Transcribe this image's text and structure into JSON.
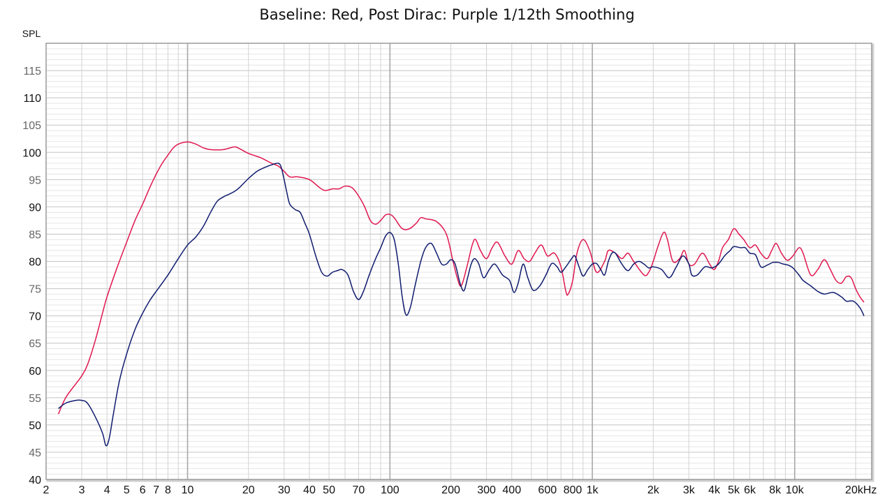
{
  "chart_data": {
    "type": "line",
    "title": "Baseline: Red, Post Dirac: Purple 1/12th Smoothing",
    "ylabel": "SPL",
    "xlabel": "",
    "x_scale": "log",
    "xlim": [
      2,
      24000
    ],
    "ylim": [
      40,
      120
    ],
    "grid": true,
    "y_ticks": [
      {
        "value": 40,
        "label": "40",
        "major": true
      },
      {
        "value": 45,
        "label": "45",
        "major": false
      },
      {
        "value": 50,
        "label": "50",
        "major": true
      },
      {
        "value": 55,
        "label": "55",
        "major": false
      },
      {
        "value": 60,
        "label": "60",
        "major": true
      },
      {
        "value": 65,
        "label": "65",
        "major": false
      },
      {
        "value": 70,
        "label": "70",
        "major": true
      },
      {
        "value": 75,
        "label": "75",
        "major": false
      },
      {
        "value": 80,
        "label": "80",
        "major": true
      },
      {
        "value": 85,
        "label": "85",
        "major": false
      },
      {
        "value": 90,
        "label": "90",
        "major": true
      },
      {
        "value": 95,
        "label": "95",
        "major": false
      },
      {
        "value": 100,
        "label": "100",
        "major": true
      },
      {
        "value": 105,
        "label": "105",
        "major": false
      },
      {
        "value": 110,
        "label": "110",
        "major": true
      },
      {
        "value": 115,
        "label": "115",
        "major": false
      }
    ],
    "x_ticks": [
      {
        "value": 2,
        "label": "2"
      },
      {
        "value": 3,
        "label": "3"
      },
      {
        "value": 4,
        "label": "4"
      },
      {
        "value": 5,
        "label": "5"
      },
      {
        "value": 6,
        "label": "6"
      },
      {
        "value": 7,
        "label": "7"
      },
      {
        "value": 8,
        "label": "8"
      },
      {
        "value": 10,
        "label": "10"
      },
      {
        "value": 20,
        "label": "20"
      },
      {
        "value": 30,
        "label": "30"
      },
      {
        "value": 40,
        "label": "40"
      },
      {
        "value": 50,
        "label": "50"
      },
      {
        "value": 70,
        "label": "70"
      },
      {
        "value": 100,
        "label": "100"
      },
      {
        "value": 200,
        "label": "200"
      },
      {
        "value": 300,
        "label": "300"
      },
      {
        "value": 400,
        "label": "400"
      },
      {
        "value": 600,
        "label": "600"
      },
      {
        "value": 800,
        "label": "800"
      },
      {
        "value": 1000,
        "label": "1k"
      },
      {
        "value": 2000,
        "label": "2k"
      },
      {
        "value": 3000,
        "label": "3k"
      },
      {
        "value": 4000,
        "label": "4k"
      },
      {
        "value": 5000,
        "label": "5k"
      },
      {
        "value": 6000,
        "label": "6k"
      },
      {
        "value": 8000,
        "label": "8k"
      },
      {
        "value": 10000,
        "label": "10k"
      },
      {
        "value": 20000,
        "label": "20kHz"
      }
    ],
    "series": [
      {
        "color": "#e0174f",
        "points": [
          [
            2.3,
            52
          ],
          [
            2.5,
            55
          ],
          [
            2.8,
            57.5
          ],
          [
            3.0,
            59
          ],
          [
            3.2,
            61
          ],
          [
            3.5,
            65.5
          ],
          [
            3.8,
            70.5
          ],
          [
            4.0,
            73.5
          ],
          [
            4.5,
            79
          ],
          [
            5.0,
            83.5
          ],
          [
            5.5,
            87.5
          ],
          [
            6.0,
            90.5
          ],
          [
            6.5,
            93.5
          ],
          [
            7.0,
            96
          ],
          [
            7.5,
            98
          ],
          [
            8.0,
            99.5
          ],
          [
            8.5,
            100.8
          ],
          [
            9.0,
            101.5
          ],
          [
            10.0,
            101.9
          ],
          [
            11,
            101.5
          ],
          [
            12,
            100.8
          ],
          [
            13,
            100.5
          ],
          [
            15,
            100.5
          ],
          [
            17,
            101
          ],
          [
            18,
            100.7
          ],
          [
            20,
            99.8
          ],
          [
            23,
            99
          ],
          [
            26,
            98
          ],
          [
            28,
            97.5
          ],
          [
            30,
            96.5
          ],
          [
            32,
            95.5
          ],
          [
            35,
            95.5
          ],
          [
            40,
            95
          ],
          [
            45,
            93.5
          ],
          [
            48,
            93
          ],
          [
            52,
            93.3
          ],
          [
            56,
            93.3
          ],
          [
            60,
            93.8
          ],
          [
            65,
            93.5
          ],
          [
            70,
            92
          ],
          [
            75,
            90
          ],
          [
            80,
            87.5
          ],
          [
            85,
            86.8
          ],
          [
            90,
            87.5
          ],
          [
            95,
            88.5
          ],
          [
            100,
            88.6
          ],
          [
            105,
            88
          ],
          [
            115,
            86
          ],
          [
            125,
            86
          ],
          [
            135,
            87
          ],
          [
            142,
            88
          ],
          [
            150,
            87.8
          ],
          [
            170,
            87.3
          ],
          [
            190,
            85
          ],
          [
            205,
            80
          ],
          [
            215,
            77
          ],
          [
            225,
            75.5
          ],
          [
            240,
            79
          ],
          [
            255,
            83
          ],
          [
            265,
            84
          ],
          [
            280,
            82
          ],
          [
            300,
            80.5
          ],
          [
            320,
            82.5
          ],
          [
            340,
            83.5
          ],
          [
            370,
            81
          ],
          [
            400,
            79.5
          ],
          [
            430,
            82
          ],
          [
            460,
            80.5
          ],
          [
            490,
            80
          ],
          [
            520,
            81.5
          ],
          [
            560,
            83
          ],
          [
            600,
            81
          ],
          [
            650,
            81.5
          ],
          [
            700,
            79
          ],
          [
            740,
            74.5
          ],
          [
            760,
            74
          ],
          [
            800,
            76.5
          ],
          [
            840,
            81.5
          ],
          [
            900,
            84
          ],
          [
            970,
            82
          ],
          [
            1050,
            78
          ],
          [
            1150,
            80
          ],
          [
            1200,
            82
          ],
          [
            1300,
            81.5
          ],
          [
            1400,
            80.5
          ],
          [
            1500,
            81.5
          ],
          [
            1600,
            80
          ],
          [
            1800,
            77.5
          ],
          [
            1900,
            78
          ],
          [
            2000,
            80
          ],
          [
            2100,
            82.5
          ],
          [
            2250,
            85.3
          ],
          [
            2350,
            84
          ],
          [
            2500,
            80
          ],
          [
            2700,
            80.5
          ],
          [
            2850,
            82
          ],
          [
            3000,
            79.5
          ],
          [
            3200,
            79.5
          ],
          [
            3500,
            81.5
          ],
          [
            3800,
            79.5
          ],
          [
            4000,
            78.5
          ],
          [
            4200,
            80
          ],
          [
            4400,
            82.5
          ],
          [
            4700,
            84
          ],
          [
            5000,
            86
          ],
          [
            5300,
            85
          ],
          [
            5600,
            84
          ],
          [
            6000,
            82.5
          ],
          [
            6400,
            83
          ],
          [
            6800,
            81.5
          ],
          [
            7300,
            80.5
          ],
          [
            7700,
            82
          ],
          [
            8100,
            83.3
          ],
          [
            8600,
            81.5
          ],
          [
            9200,
            80.2
          ],
          [
            9800,
            81
          ],
          [
            10500,
            82.5
          ],
          [
            11000,
            81.5
          ],
          [
            12000,
            77.5
          ],
          [
            13000,
            78.5
          ],
          [
            14000,
            80.3
          ],
          [
            15000,
            78.5
          ],
          [
            16000,
            76.5
          ],
          [
            17000,
            76
          ],
          [
            18000,
            77.2
          ],
          [
            19000,
            77
          ],
          [
            20000,
            75
          ],
          [
            21000,
            73.5
          ],
          [
            22000,
            72.5
          ]
        ]
      },
      {
        "color": "#0f1b6e",
        "points": [
          [
            2.3,
            53
          ],
          [
            2.5,
            54
          ],
          [
            2.8,
            54.5
          ],
          [
            3.0,
            54.5
          ],
          [
            3.2,
            54
          ],
          [
            3.5,
            51.5
          ],
          [
            3.8,
            48.5
          ],
          [
            3.95,
            46.2
          ],
          [
            4.1,
            47.5
          ],
          [
            4.3,
            52
          ],
          [
            4.6,
            58
          ],
          [
            5.0,
            63
          ],
          [
            5.5,
            67.5
          ],
          [
            6.0,
            70.5
          ],
          [
            6.5,
            72.8
          ],
          [
            7.0,
            74.5
          ],
          [
            8.0,
            77.5
          ],
          [
            9.0,
            80.5
          ],
          [
            10,
            83
          ],
          [
            11,
            84.5
          ],
          [
            12,
            86.5
          ],
          [
            13,
            89
          ],
          [
            14,
            91
          ],
          [
            15,
            91.8
          ],
          [
            16,
            92.3
          ],
          [
            17,
            92.8
          ],
          [
            18,
            93.5
          ],
          [
            20,
            95.2
          ],
          [
            22,
            96.5
          ],
          [
            24,
            97.2
          ],
          [
            26,
            97.7
          ],
          [
            28,
            98
          ],
          [
            29,
            97.3
          ],
          [
            30,
            95
          ],
          [
            31,
            92.5
          ],
          [
            32,
            90.5
          ],
          [
            34,
            89.5
          ],
          [
            36,
            89
          ],
          [
            38,
            87
          ],
          [
            40,
            85
          ],
          [
            43,
            81
          ],
          [
            46,
            78
          ],
          [
            49,
            77.3
          ],
          [
            52,
            78
          ],
          [
            55,
            78.3
          ],
          [
            58,
            78.5
          ],
          [
            62,
            77.5
          ],
          [
            66,
            74.5
          ],
          [
            70,
            73
          ],
          [
            74,
            74.5
          ],
          [
            79,
            77.5
          ],
          [
            85,
            80.5
          ],
          [
            90,
            82.5
          ],
          [
            95,
            84.6
          ],
          [
            100,
            85.3
          ],
          [
            105,
            84
          ],
          [
            110,
            79.5
          ],
          [
            115,
            73.5
          ],
          [
            120,
            70.2
          ],
          [
            126,
            71.5
          ],
          [
            133,
            75.5
          ],
          [
            142,
            80
          ],
          [
            150,
            82.5
          ],
          [
            160,
            83.3
          ],
          [
            170,
            81.5
          ],
          [
            180,
            79.5
          ],
          [
            190,
            79.5
          ],
          [
            200,
            80.3
          ],
          [
            210,
            79.5
          ],
          [
            222,
            76
          ],
          [
            232,
            74.6
          ],
          [
            242,
            77
          ],
          [
            252,
            79.5
          ],
          [
            262,
            80.5
          ],
          [
            275,
            79.5
          ],
          [
            290,
            77
          ],
          [
            310,
            78.5
          ],
          [
            330,
            79.5
          ],
          [
            360,
            77.5
          ],
          [
            390,
            76.5
          ],
          [
            410,
            74.3
          ],
          [
            430,
            76
          ],
          [
            455,
            79.5
          ],
          [
            480,
            77
          ],
          [
            510,
            74.7
          ],
          [
            550,
            75.5
          ],
          [
            590,
            77.5
          ],
          [
            630,
            79.6
          ],
          [
            670,
            79
          ],
          [
            700,
            78
          ],
          [
            740,
            79
          ],
          [
            790,
            80.5
          ],
          [
            820,
            81
          ],
          [
            860,
            79
          ],
          [
            900,
            77.3
          ],
          [
            950,
            78.5
          ],
          [
            1000,
            79.5
          ],
          [
            1050,
            79.6
          ],
          [
            1100,
            78.5
          ],
          [
            1150,
            77.5
          ],
          [
            1200,
            80
          ],
          [
            1250,
            81.5
          ],
          [
            1300,
            81.5
          ],
          [
            1400,
            79.5
          ],
          [
            1500,
            78.3
          ],
          [
            1600,
            79.5
          ],
          [
            1700,
            80
          ],
          [
            1800,
            79.5
          ],
          [
            1900,
            78.8
          ],
          [
            2000,
            79
          ],
          [
            2200,
            78.5
          ],
          [
            2400,
            77
          ],
          [
            2600,
            79
          ],
          [
            2800,
            81
          ],
          [
            3000,
            79.5
          ],
          [
            3100,
            77.5
          ],
          [
            3300,
            77.5
          ],
          [
            3600,
            79
          ],
          [
            3900,
            78.8
          ],
          [
            4200,
            79.5
          ],
          [
            4500,
            81
          ],
          [
            4800,
            82
          ],
          [
            5000,
            82.7
          ],
          [
            5400,
            82.5
          ],
          [
            5700,
            82.5
          ],
          [
            6000,
            81.5
          ],
          [
            6400,
            81.2
          ],
          [
            6800,
            79
          ],
          [
            7300,
            79.3
          ],
          [
            7800,
            79.8
          ],
          [
            8300,
            79.8
          ],
          [
            8800,
            79.5
          ],
          [
            9300,
            79.3
          ],
          [
            9800,
            78.8
          ],
          [
            10500,
            77.5
          ],
          [
            11000,
            76.5
          ],
          [
            12000,
            75.5
          ],
          [
            13000,
            74.5
          ],
          [
            14000,
            74
          ],
          [
            15500,
            74.3
          ],
          [
            17000,
            73.5
          ],
          [
            18000,
            72.7
          ],
          [
            19500,
            72.7
          ],
          [
            21000,
            71.5
          ],
          [
            22000,
            70
          ]
        ]
      }
    ]
  }
}
